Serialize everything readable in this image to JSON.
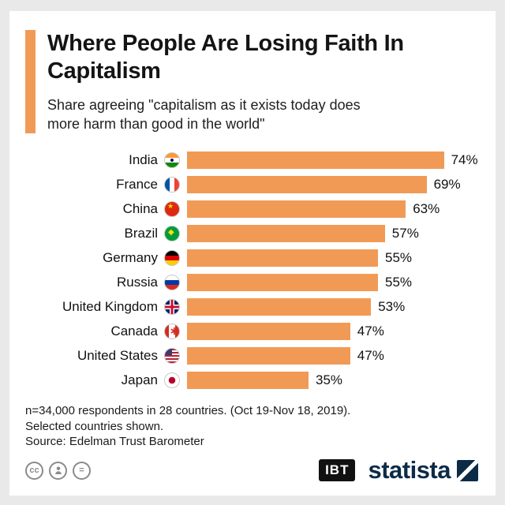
{
  "chart_data": {
    "type": "bar",
    "orientation": "horizontal",
    "title": "Where People Are Losing Faith In Capitalism",
    "subtitle": "Share agreeing \"capitalism as it exists today does more harm than good in the world\"",
    "categories": [
      "India",
      "France",
      "China",
      "Brazil",
      "Germany",
      "Russia",
      "United Kingdom",
      "Canada",
      "United States",
      "Japan"
    ],
    "values": [
      74,
      69,
      63,
      57,
      55,
      55,
      53,
      47,
      47,
      35
    ],
    "unit": "%",
    "flags": [
      "india",
      "france",
      "china",
      "brazil",
      "germany",
      "russia",
      "united-kingdom",
      "canada",
      "united-states",
      "japan"
    ],
    "bar_color": "#F19A56",
    "xlim": [
      0,
      80
    ],
    "grid": false,
    "legend": "none"
  },
  "footer": {
    "note1": "n=34,000 respondents in 28 countries. (Oct 19-Nov 18, 2019).",
    "note2": "Selected countries shown.",
    "source": "Source: Edelman Trust Barometer"
  },
  "branding": {
    "cc_label": "cc",
    "equals_label": "=",
    "ibt_label": "IBT",
    "statista_label": "statista"
  },
  "colors": {
    "accent_orange": "#F19A56",
    "statista_navy": "#0C2B46"
  }
}
